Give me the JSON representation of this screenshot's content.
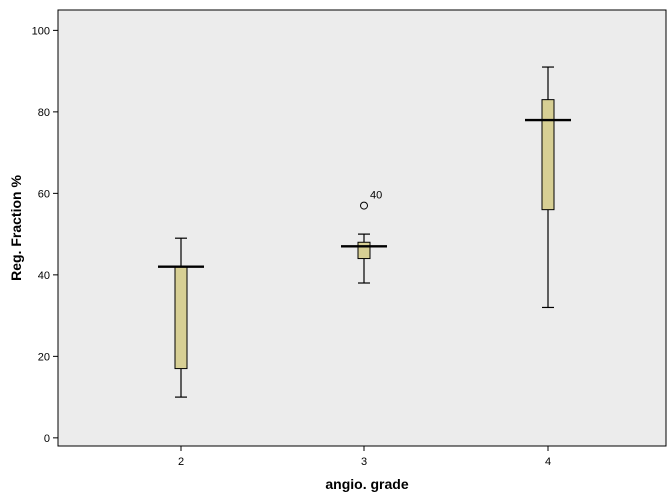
{
  "chart_data": {
    "type": "boxplot",
    "xlabel": "angio. grade",
    "ylabel": "Reg. Fraction %",
    "ylim": [
      -2,
      105
    ],
    "yticks": [
      0,
      20,
      40,
      60,
      80,
      100
    ],
    "grid": false,
    "colors": {
      "plot_background": "#ececec",
      "box_fill": "#d7cf94",
      "stroke": "#000000"
    },
    "groups": [
      {
        "category": "2",
        "whisker_low": 10,
        "q1": 17,
        "median": 42,
        "q3": 42,
        "whisker_high": 49,
        "outliers": []
      },
      {
        "category": "3",
        "whisker_low": 38,
        "q1": 44,
        "median": 47,
        "q3": 48,
        "whisker_high": 50,
        "outliers": [
          {
            "value": 57,
            "label": "40"
          }
        ]
      },
      {
        "category": "4",
        "whisker_low": 32,
        "q1": 56,
        "median": 78,
        "q3": 83,
        "whisker_high": 91,
        "outliers": []
      }
    ]
  }
}
